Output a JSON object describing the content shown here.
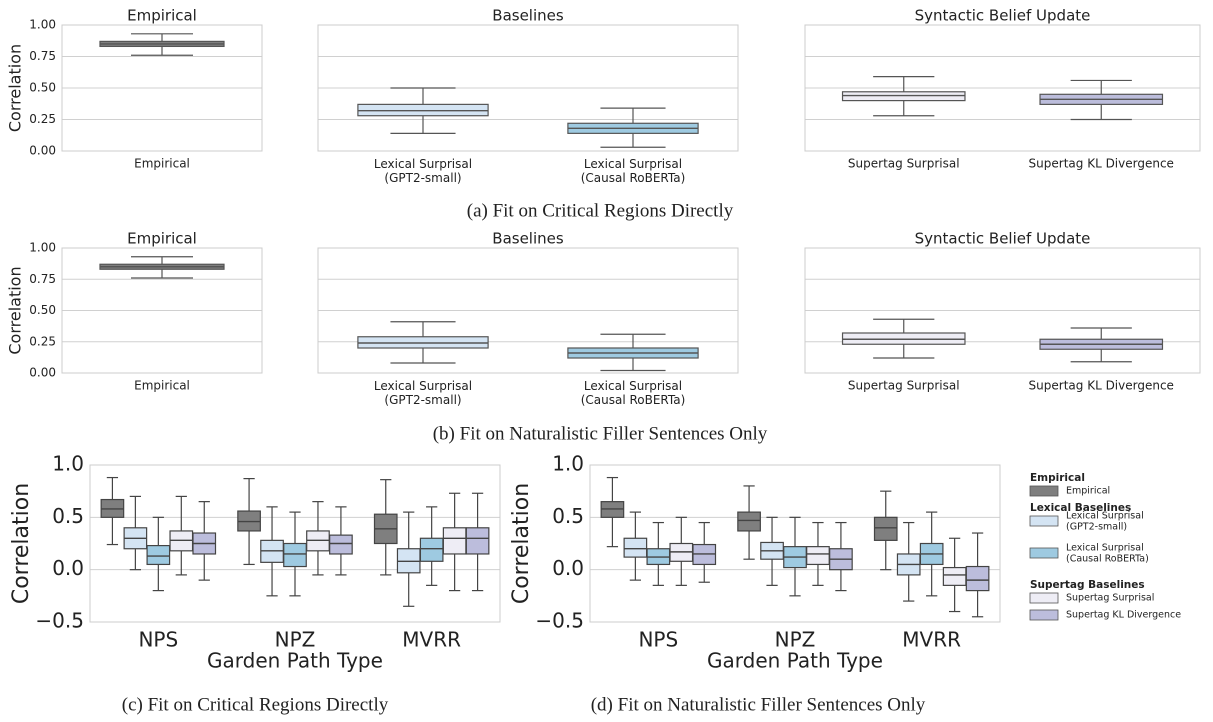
{
  "chart_data": [
    {
      "type": "box",
      "title": "Empirical",
      "ylabel": "Correlation",
      "categories": [
        "Empirical"
      ],
      "colors": [
        "#7f7f7f"
      ],
      "values": [
        {
          "whislo": 0.76,
          "q1": 0.83,
          "med": 0.85,
          "q3": 0.87,
          "whishi": 0.93
        }
      ],
      "ylim": [
        0,
        1
      ],
      "yticks": [
        {
          "value": 0,
          "label": "0.00"
        },
        {
          "value": 0.25,
          "label": "0.25"
        },
        {
          "value": 0.5,
          "label": "0.50"
        },
        {
          "value": 0.75,
          "label": "0.75"
        },
        {
          "value": 1,
          "label": "1.00"
        }
      ],
      "grid": true
    },
    {
      "type": "box",
      "title": "Baselines",
      "categories": [
        "Lexical Surprisal\n(GPT2-small)",
        "Lexical Surprisal\n(Causal RoBERTa)"
      ],
      "colors": [
        "#d4e4f3",
        "#9ecae1"
      ],
      "values": [
        {
          "whislo": 0.14,
          "q1": 0.28,
          "med": 0.32,
          "q3": 0.37,
          "whishi": 0.5
        },
        {
          "whislo": 0.03,
          "q1": 0.14,
          "med": 0.18,
          "q3": 0.22,
          "whishi": 0.34
        }
      ],
      "ylim": [
        0,
        1
      ],
      "yticks": [
        0,
        0.25,
        0.5,
        0.75,
        1
      ],
      "grid": true
    },
    {
      "type": "box",
      "title": "Syntactic Belief Update",
      "categories": [
        "Supertag Surprisal",
        "Supertag KL Divergence"
      ],
      "colors": [
        "#eeedf5",
        "#bcbddc"
      ],
      "values": [
        {
          "whislo": 0.28,
          "q1": 0.4,
          "med": 0.44,
          "q3": 0.47,
          "whishi": 0.59
        },
        {
          "whislo": 0.25,
          "q1": 0.37,
          "med": 0.41,
          "q3": 0.45,
          "whishi": 0.56
        }
      ],
      "ylim": [
        0,
        1
      ],
      "yticks": [
        0,
        0.25,
        0.5,
        0.75,
        1
      ],
      "grid": true
    },
    {
      "type": "box",
      "title": "Empirical",
      "ylabel": "Correlation",
      "categories": [
        "Empirical"
      ],
      "colors": [
        "#7f7f7f"
      ],
      "values": [
        {
          "whislo": 0.76,
          "q1": 0.83,
          "med": 0.85,
          "q3": 0.87,
          "whishi": 0.93
        }
      ],
      "ylim": [
        0,
        1
      ],
      "yticks": [
        {
          "value": 0,
          "label": "0.00"
        },
        {
          "value": 0.25,
          "label": "0.25"
        },
        {
          "value": 0.5,
          "label": "0.50"
        },
        {
          "value": 0.75,
          "label": "0.75"
        },
        {
          "value": 1,
          "label": "1.00"
        }
      ],
      "grid": true
    },
    {
      "type": "box",
      "title": "Baselines",
      "categories": [
        "Lexical Surprisal\n(GPT2-small)",
        "Lexical Surprisal\n(Causal RoBERTa)"
      ],
      "colors": [
        "#d4e4f3",
        "#9ecae1"
      ],
      "values": [
        {
          "whislo": 0.08,
          "q1": 0.2,
          "med": 0.24,
          "q3": 0.29,
          "whishi": 0.41
        },
        {
          "whislo": 0.02,
          "q1": 0.12,
          "med": 0.16,
          "q3": 0.2,
          "whishi": 0.31
        }
      ],
      "ylim": [
        0,
        1
      ],
      "yticks": [
        0,
        0.25,
        0.5,
        0.75,
        1
      ],
      "grid": true
    },
    {
      "type": "box",
      "title": "Syntactic Belief Update",
      "categories": [
        "Supertag Surprisal",
        "Supertag KL Divergence"
      ],
      "colors": [
        "#eeedf5",
        "#bcbddc"
      ],
      "values": [
        {
          "whislo": 0.12,
          "q1": 0.23,
          "med": 0.27,
          "q3": 0.32,
          "whishi": 0.43
        },
        {
          "whislo": 0.09,
          "q1": 0.19,
          "med": 0.23,
          "q3": 0.27,
          "whishi": 0.36
        }
      ],
      "ylim": [
        0,
        1
      ],
      "yticks": [
        0,
        0.25,
        0.5,
        0.75,
        1
      ],
      "grid": true
    },
    {
      "type": "grouped_box",
      "xlabel": "Garden Path Type",
      "ylabel": "Correlation",
      "categories": [
        "NPS",
        "NPZ",
        "MVRR"
      ],
      "ylim": [
        -0.5,
        1
      ],
      "yticks": [
        {
          "value": -0.5,
          "label": "−0.5"
        },
        {
          "value": 0,
          "label": "0.0"
        },
        {
          "value": 0.5,
          "label": "0.5"
        },
        {
          "value": 1,
          "label": "1.0"
        }
      ],
      "grid": true,
      "series": [
        {
          "name": "Empirical",
          "color": "#7f7f7f",
          "values": [
            {
              "whislo": 0.24,
              "q1": 0.5,
              "med": 0.58,
              "q3": 0.67,
              "whishi": 0.88
            },
            {
              "whislo": 0.05,
              "q1": 0.37,
              "med": 0.46,
              "q3": 0.56,
              "whishi": 0.87
            },
            {
              "whislo": -0.05,
              "q1": 0.25,
              "med": 0.39,
              "q3": 0.53,
              "whishi": 0.86
            }
          ]
        },
        {
          "name": "Lexical Surprisal\n(GPT2-small)",
          "color": "#d4e4f3",
          "values": [
            {
              "whislo": 0,
              "q1": 0.2,
              "med": 0.3,
              "q3": 0.4,
              "whishi": 0.7
            },
            {
              "whislo": -0.25,
              "q1": 0.07,
              "med": 0.18,
              "q3": 0.28,
              "whishi": 0.6
            },
            {
              "whislo": -0.35,
              "q1": -0.03,
              "med": 0.08,
              "q3": 0.2,
              "whishi": 0.55
            }
          ]
        },
        {
          "name": "Lexical Surprisal\n(Causal RoBERTa)",
          "color": "#9ecae1",
          "values": [
            {
              "whislo": -0.2,
              "q1": 0.05,
              "med": 0.13,
              "q3": 0.23,
              "whishi": 0.5
            },
            {
              "whislo": -0.25,
              "q1": 0.03,
              "med": 0.15,
              "q3": 0.25,
              "whishi": 0.55
            },
            {
              "whislo": -0.15,
              "q1": 0.08,
              "med": 0.2,
              "q3": 0.3,
              "whishi": 0.6
            }
          ]
        },
        {
          "name": "Supertag Surprisal",
          "color": "#eeedf5",
          "values": [
            {
              "whislo": -0.05,
              "q1": 0.18,
              "med": 0.28,
              "q3": 0.37,
              "whishi": 0.7
            },
            {
              "whislo": -0.05,
              "q1": 0.18,
              "med": 0.28,
              "q3": 0.37,
              "whishi": 0.65
            },
            {
              "whislo": -0.2,
              "q1": 0.15,
              "med": 0.3,
              "q3": 0.4,
              "whishi": 0.73
            }
          ]
        },
        {
          "name": "Supertag KL Divergence",
          "color": "#bcbddc",
          "values": [
            {
              "whislo": -0.1,
              "q1": 0.15,
              "med": 0.25,
              "q3": 0.35,
              "whishi": 0.65
            },
            {
              "whislo": -0.05,
              "q1": 0.15,
              "med": 0.25,
              "q3": 0.33,
              "whishi": 0.6
            },
            {
              "whislo": -0.2,
              "q1": 0.15,
              "med": 0.3,
              "q3": 0.4,
              "whishi": 0.73
            }
          ]
        }
      ]
    },
    {
      "type": "grouped_box",
      "xlabel": "Garden Path Type",
      "ylabel": "Correlation",
      "categories": [
        "NPS",
        "NPZ",
        "MVRR"
      ],
      "ylim": [
        -0.5,
        1
      ],
      "yticks": [
        {
          "value": -0.5,
          "label": "−0.5"
        },
        {
          "value": 0,
          "label": "0.0"
        },
        {
          "value": 0.5,
          "label": "0.5"
        },
        {
          "value": 1,
          "label": "1.0"
        }
      ],
      "grid": true,
      "series": [
        {
          "name": "Empirical",
          "color": "#7f7f7f",
          "values": [
            {
              "whislo": 0.22,
              "q1": 0.5,
              "med": 0.58,
              "q3": 0.65,
              "whishi": 0.88
            },
            {
              "whislo": 0.1,
              "q1": 0.37,
              "med": 0.47,
              "q3": 0.55,
              "whishi": 0.8
            },
            {
              "whislo": 0,
              "q1": 0.28,
              "med": 0.4,
              "q3": 0.5,
              "whishi": 0.75
            }
          ]
        },
        {
          "name": "Lexical Surprisal\n(GPT2-small)",
          "color": "#d4e4f3",
          "values": [
            {
              "whislo": -0.1,
              "q1": 0.12,
              "med": 0.2,
              "q3": 0.3,
              "whishi": 0.55
            },
            {
              "whislo": -0.15,
              "q1": 0.1,
              "med": 0.18,
              "q3": 0.26,
              "whishi": 0.5
            },
            {
              "whislo": -0.3,
              "q1": -0.05,
              "med": 0.05,
              "q3": 0.15,
              "whishi": 0.45
            }
          ]
        },
        {
          "name": "Lexical Surprisal\n(Causal RoBERTa)",
          "color": "#9ecae1",
          "values": [
            {
              "whislo": -0.15,
              "q1": 0.05,
              "med": 0.12,
              "q3": 0.2,
              "whishi": 0.45
            },
            {
              "whislo": -0.25,
              "q1": 0.02,
              "med": 0.12,
              "q3": 0.22,
              "whishi": 0.5
            },
            {
              "whislo": -0.25,
              "q1": 0.05,
              "med": 0.15,
              "q3": 0.25,
              "whishi": 0.55
            }
          ]
        },
        {
          "name": "Supertag Surprisal",
          "color": "#eeedf5",
          "values": [
            {
              "whislo": -0.15,
              "q1": 0.08,
              "med": 0.17,
              "q3": 0.25,
              "whishi": 0.5
            },
            {
              "whislo": -0.15,
              "q1": 0.05,
              "med": 0.15,
              "q3": 0.22,
              "whishi": 0.45
            },
            {
              "whislo": -0.4,
              "q1": -0.15,
              "med": -0.05,
              "q3": 0.02,
              "whishi": 0.3
            }
          ]
        },
        {
          "name": "Supertag KL Divergence",
          "color": "#bcbddc",
          "values": [
            {
              "whislo": -0.12,
              "q1": 0.05,
              "med": 0.15,
              "q3": 0.24,
              "whishi": 0.45
            },
            {
              "whislo": -0.2,
              "q1": 0,
              "med": 0.1,
              "q3": 0.2,
              "whishi": 0.45
            },
            {
              "whislo": -0.45,
              "q1": -0.2,
              "med": -0.1,
              "q3": 0.03,
              "whishi": 0.35
            }
          ]
        }
      ]
    }
  ],
  "captions": [
    "(a) Fit on Critical Regions Directly",
    "(b) Fit on Naturalistic Filler Sentences Only",
    "(c) Fit on Critical Regions Directly",
    "(d) Fit on Naturalistic Filler Sentences Only"
  ],
  "legend_titles": [
    "Empirical",
    "Lexical Baselines",
    "Supertag Baselines"
  ]
}
